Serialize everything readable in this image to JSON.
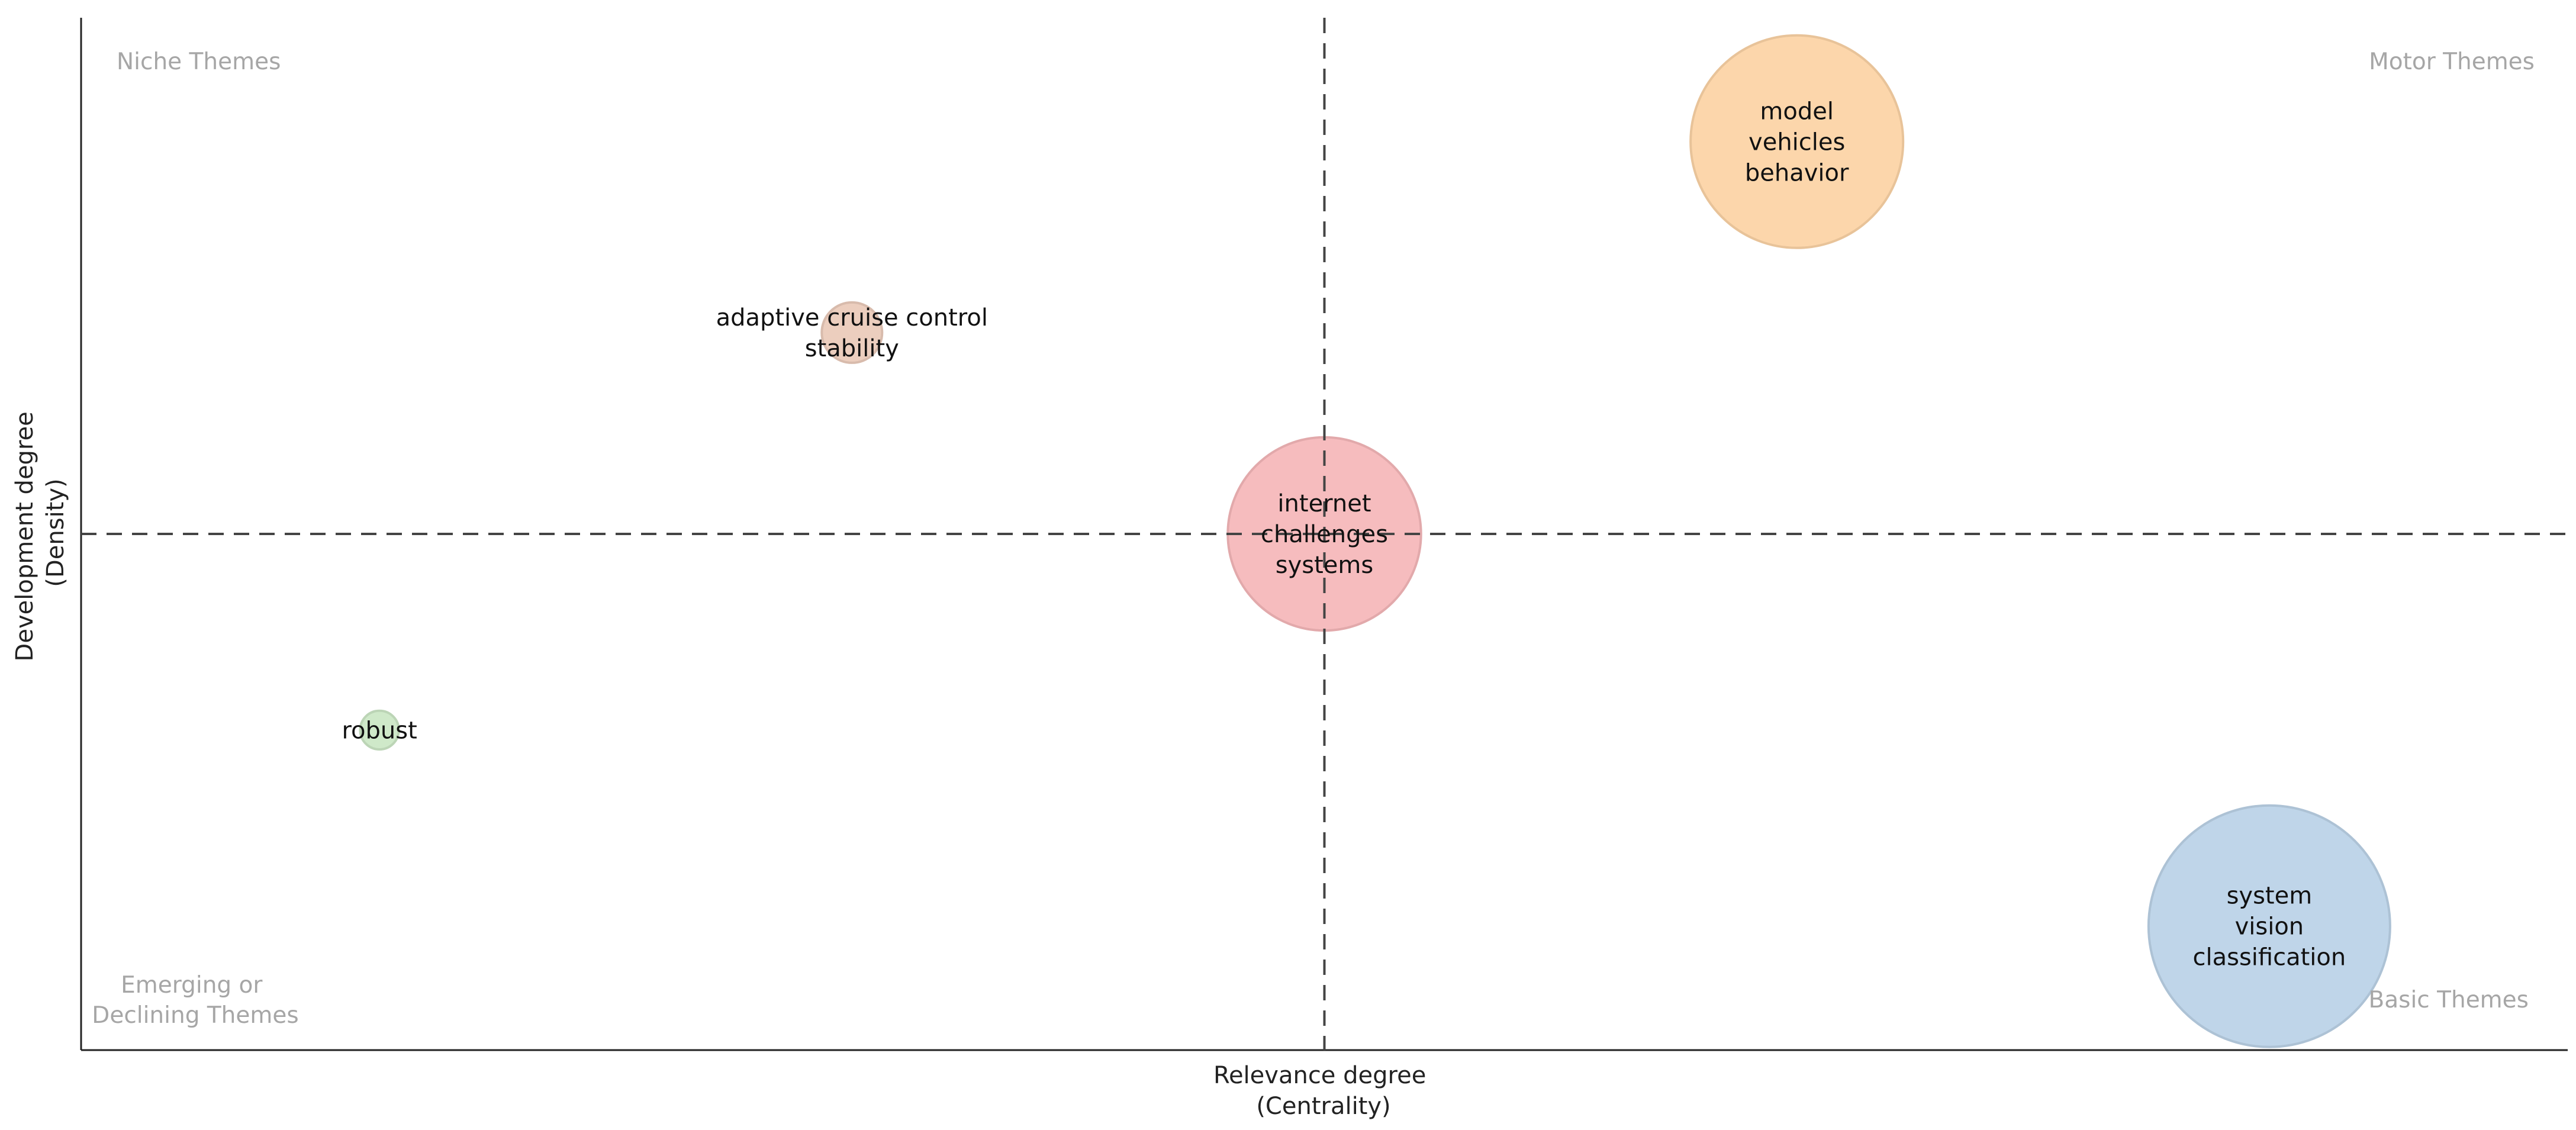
{
  "chart_data": {
    "type": "scatter",
    "subtype": "bubble",
    "title": "",
    "xlabel": [
      "Relevance degree",
      "(Centrality)"
    ],
    "ylabel": [
      "Development degree",
      "(Density)"
    ],
    "xlim": [
      0,
      1
    ],
    "ylim": [
      0,
      1
    ],
    "reference_lines": {
      "x": 0.5,
      "y": 0.5,
      "style": "dashed"
    },
    "grid": false,
    "quadrant_labels": {
      "top_left": [
        "Niche Themes"
      ],
      "top_right": [
        "Motor Themes"
      ],
      "bottom_left": [
        "Emerging or",
        "Declining Themes"
      ],
      "bottom_right": [
        "Basic Themes"
      ]
    },
    "points": [
      {
        "label": [
          "model",
          "vehicles",
          "behavior"
        ],
        "x": 0.69,
        "y": 0.88,
        "size": 0.88,
        "color": "#fcd4a6"
      },
      {
        "label": [
          "adaptive cruise control",
          "stability"
        ],
        "x": 0.31,
        "y": 0.695,
        "size": 0.25,
        "color": "#ebcbbb"
      },
      {
        "label": [
          "internet",
          "challenges",
          "systems"
        ],
        "x": 0.5,
        "y": 0.5,
        "size": 0.8,
        "color": "#f6b8ba"
      },
      {
        "label": [
          "robust"
        ],
        "x": 0.12,
        "y": 0.31,
        "size": 0.16,
        "color": "#cce8c6"
      },
      {
        "label": [
          "system",
          "vision",
          "classification"
        ],
        "x": 0.88,
        "y": 0.12,
        "size": 1.0,
        "color": "#bcd3e8"
      }
    ]
  }
}
